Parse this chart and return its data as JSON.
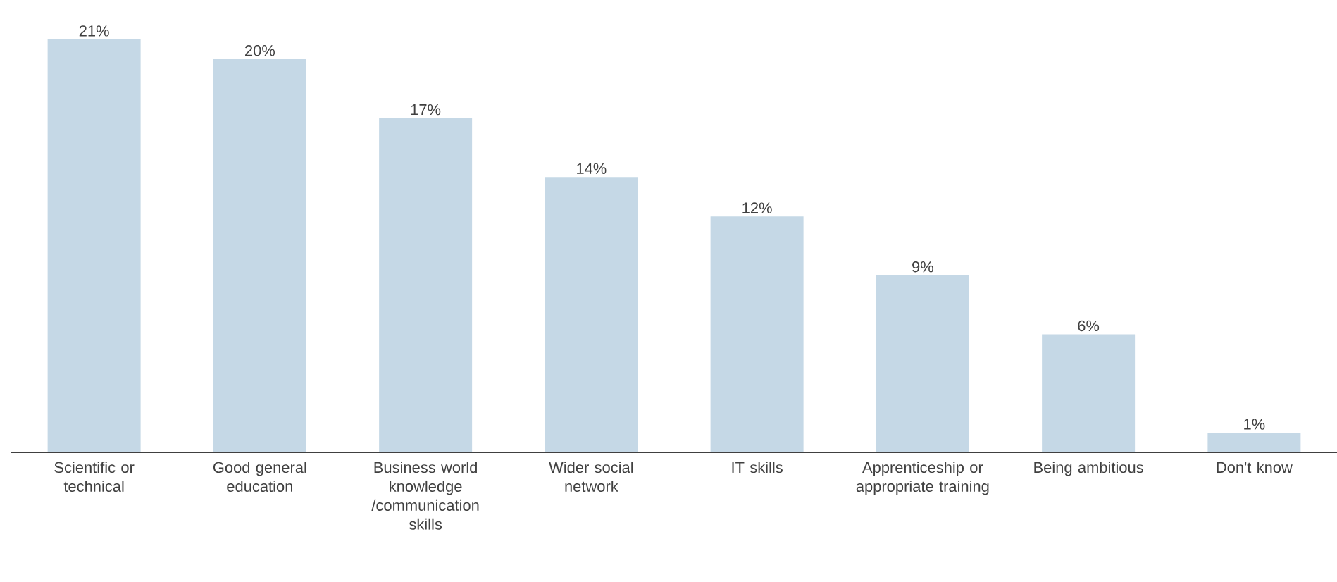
{
  "chart_data": {
    "type": "bar",
    "categories": [
      "Scientific or technical",
      "Good general education",
      "Business world knowledge /communication skills",
      "Wider social network",
      "IT skills",
      "Apprenticeship or appropriate training",
      "Being ambitious",
      "Don't know"
    ],
    "values": [
      21,
      20,
      17,
      14,
      12,
      9,
      6,
      1
    ],
    "value_labels": [
      "21%",
      "20%",
      "17%",
      "14%",
      "12%",
      "9%",
      "6%",
      "1%"
    ],
    "color": "#c5d8e6"
  }
}
